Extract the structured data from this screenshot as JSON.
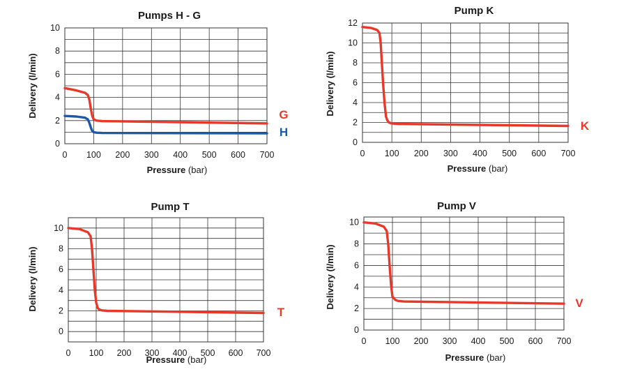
{
  "chart_data": [
    {
      "type": "line",
      "title": "Pumps H - G",
      "xlabel": "Pressure",
      "xlabel_unit": "(bar)",
      "ylabel": "Delivery (l/min)",
      "xlim": [
        0,
        700
      ],
      "ylim": [
        0,
        10
      ],
      "xticks": [
        0,
        100,
        200,
        300,
        400,
        500,
        600,
        700
      ],
      "yticks": [
        0,
        2,
        4,
        6,
        8,
        10
      ],
      "grid": true,
      "series": [
        {
          "name": "G",
          "color": "#e8382a",
          "x": [
            0,
            40,
            70,
            80,
            85,
            90,
            95,
            100,
            110,
            130,
            700
          ],
          "y": [
            4.8,
            4.6,
            4.4,
            4.2,
            3.8,
            3.0,
            2.4,
            2.1,
            2.0,
            1.95,
            1.75
          ]
        },
        {
          "name": "H",
          "color": "#1c5aa8",
          "x": [
            0,
            40,
            70,
            80,
            85,
            90,
            95,
            100,
            110,
            130,
            700
          ],
          "y": [
            2.4,
            2.35,
            2.25,
            2.1,
            1.8,
            1.4,
            1.1,
            1.0,
            0.95,
            0.93,
            0.9
          ]
        }
      ]
    },
    {
      "type": "line",
      "title": "Pump K",
      "xlabel": "Pressure",
      "xlabel_unit": "(bar)",
      "ylabel": "Delivery (l/min)",
      "xlim": [
        0,
        700
      ],
      "ylim": [
        0,
        12
      ],
      "xticks": [
        0,
        100,
        200,
        300,
        400,
        500,
        600,
        700
      ],
      "yticks": [
        0,
        2,
        4,
        6,
        8,
        10,
        12
      ],
      "grid": true,
      "series": [
        {
          "name": "K",
          "color": "#e8382a",
          "x": [
            0,
            30,
            50,
            58,
            62,
            66,
            70,
            75,
            80,
            85,
            90,
            100,
            120,
            700
          ],
          "y": [
            11.6,
            11.5,
            11.3,
            11.0,
            10.0,
            8.0,
            6.0,
            4.0,
            2.6,
            2.2,
            2.0,
            1.9,
            1.85,
            1.65
          ]
        }
      ]
    },
    {
      "type": "line",
      "title": "Pump T",
      "xlabel": "Pressure",
      "xlabel_unit": "(bar)",
      "ylabel": "Delivery (l/min)",
      "xlim": [
        0,
        700
      ],
      "ylim": [
        -1,
        11
      ],
      "xticks": [
        0,
        100,
        200,
        300,
        400,
        500,
        600,
        700
      ],
      "yticks": [
        0,
        2,
        4,
        6,
        8,
        10
      ],
      "grid": true,
      "series": [
        {
          "name": "T",
          "color": "#e8382a",
          "x": [
            0,
            40,
            70,
            80,
            85,
            90,
            95,
            100,
            105,
            110,
            120,
            140,
            700
          ],
          "y": [
            10.0,
            9.9,
            9.6,
            9.2,
            8.0,
            6.0,
            4.0,
            2.8,
            2.3,
            2.15,
            2.05,
            2.0,
            1.8
          ]
        }
      ]
    },
    {
      "type": "line",
      "title": "Pump V",
      "xlabel": "Pressure",
      "xlabel_unit": "(bar)",
      "ylabel": "Delivery (l/min)",
      "xlim": [
        0,
        700
      ],
      "ylim": [
        0,
        10.5
      ],
      "xticks": [
        0,
        100,
        200,
        300,
        400,
        500,
        600,
        700
      ],
      "yticks": [
        0,
        2,
        4,
        6,
        8,
        10
      ],
      "grid": true,
      "series": [
        {
          "name": "V",
          "color": "#e8382a",
          "x": [
            0,
            40,
            70,
            80,
            85,
            90,
            95,
            100,
            110,
            120,
            140,
            700
          ],
          "y": [
            10.0,
            9.9,
            9.6,
            9.2,
            8.0,
            6.0,
            4.2,
            3.1,
            2.8,
            2.7,
            2.65,
            2.45
          ]
        }
      ]
    }
  ]
}
